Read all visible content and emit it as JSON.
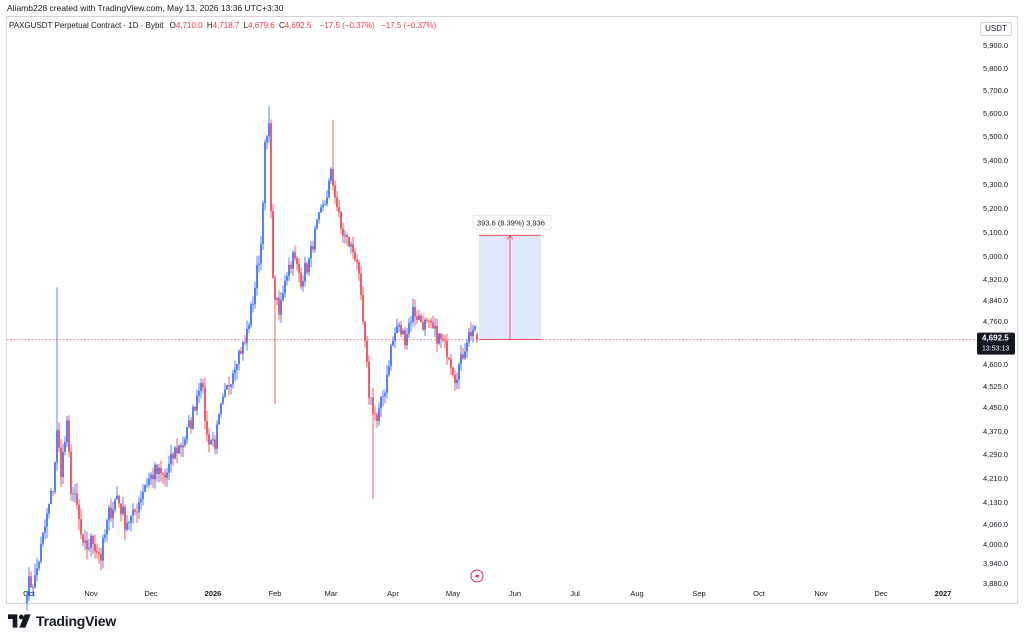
{
  "header": {
    "credit": "Aliamb228 created with TradingView.com, May 13, 2026 13:36 UTC+3:30"
  },
  "legend": {
    "symbol": "PAXGUSDT Perpetual Contract · 1D · Bybit",
    "open_key": "O",
    "open": "4,710.0",
    "high_key": "H",
    "high": "4,718.7",
    "low_key": "L",
    "low": "4,679.6",
    "close_key": "C",
    "close": "4,692.5",
    "change": "−17.5 (−0.37%)",
    "change2": "−17.5 (−0.37%)"
  },
  "currency": "USDT",
  "brand": {
    "name": "TradingView",
    "logo": "tradingview-logo-icon"
  },
  "colors": {
    "up": "#2962ff",
    "down": "#f23645",
    "measure_fill": "#dbe6fc",
    "measure_line": "#f23645"
  },
  "chart_data": {
    "type": "candlestick",
    "x_tick_labels": [
      "Oct",
      "Nov",
      "Dec",
      "2026",
      "Feb",
      "Mar",
      "Apr",
      "May",
      "Jun",
      "Jul",
      "Aug",
      "Sep",
      "Oct",
      "Nov",
      "Dec",
      "2027"
    ],
    "y_tick_labels": [
      "5,900.0",
      "5,800.0",
      "5,700.0",
      "5,600.0",
      "5,500.0",
      "5,400.0",
      "5,300.0",
      "5,200.0",
      "5,100.0",
      "5,000.0",
      "4,920.0",
      "4,840.0",
      "4,760.0",
      "4,680.0",
      "4,600.0",
      "4,525.0",
      "4,450.0",
      "4,370.0",
      "4,290.0",
      "4,210.0",
      "4,130.0",
      "4,060.0",
      "4,000.0",
      "3,940.0",
      "3,880.0"
    ],
    "price_scale": [
      [
        5900.0,
        45
      ],
      [
        5800.0,
        68
      ],
      [
        5700.0,
        90
      ],
      [
        5600.0,
        113
      ],
      [
        5500.0,
        136
      ],
      [
        5400.0,
        160
      ],
      [
        5300.0,
        184
      ],
      [
        5200.0,
        208
      ],
      [
        5100.0,
        232
      ],
      [
        5000.0,
        256
      ],
      [
        4920.0,
        279
      ],
      [
        4840.0,
        300
      ],
      [
        4760.0,
        321
      ],
      [
        4680.0,
        343
      ],
      [
        4600.0,
        364
      ],
      [
        4525.0,
        386
      ],
      [
        4450.0,
        407
      ],
      [
        4370.0,
        431
      ],
      [
        4290.0,
        454
      ],
      [
        4210.0,
        478
      ],
      [
        4130.0,
        502
      ],
      [
        4060.0,
        524
      ],
      [
        4000.0,
        544
      ],
      [
        3940.0,
        563
      ],
      [
        3880.0,
        583
      ]
    ],
    "last_price": "4,692.5",
    "countdown": "13:53:13",
    "measure_label": "393.6 (8.39%) 3,936",
    "measure": {
      "from_price": 4692.5,
      "to_price": 5086.1,
      "from_date": "2026-05-14",
      "to_date": "2026-06-14"
    },
    "candle_anchors": [
      [
        "2025-09-30",
        3870
      ],
      [
        "2025-10-04",
        3890
      ],
      [
        "2025-10-09",
        4050
      ],
      [
        "2025-10-13",
        4180
      ],
      [
        "2025-10-15",
        4360
      ],
      [
        "2025-10-17",
        4240
      ],
      [
        "2025-10-20",
        4380
      ],
      [
        "2025-10-22",
        4180
      ],
      [
        "2025-10-25",
        4110
      ],
      [
        "2025-10-28",
        3980
      ],
      [
        "2025-11-02",
        4010
      ],
      [
        "2025-11-06",
        3960
      ],
      [
        "2025-11-10",
        4090
      ],
      [
        "2025-11-14",
        4150
      ],
      [
        "2025-11-18",
        4070
      ],
      [
        "2025-11-22",
        4080
      ],
      [
        "2025-11-28",
        4190
      ],
      [
        "2025-12-03",
        4230
      ],
      [
        "2025-12-08",
        4210
      ],
      [
        "2025-12-13",
        4300
      ],
      [
        "2025-12-17",
        4330
      ],
      [
        "2025-12-21",
        4400
      ],
      [
        "2025-12-26",
        4560
      ],
      [
        "2025-12-29",
        4350
      ],
      [
        "2026-01-02",
        4330
      ],
      [
        "2026-01-05",
        4440
      ],
      [
        "2026-01-10",
        4560
      ],
      [
        "2026-01-13",
        4630
      ],
      [
        "2026-01-17",
        4680
      ],
      [
        "2026-01-21",
        4840
      ],
      [
        "2026-01-25",
        5050
      ],
      [
        "2026-01-27",
        5450
      ],
      [
        "2026-01-29",
        5530
      ],
      [
        "2026-01-31",
        4900
      ],
      [
        "2026-02-03",
        4780
      ],
      [
        "2026-02-06",
        4930
      ],
      [
        "2026-02-10",
        5000
      ],
      [
        "2026-02-14",
        4920
      ],
      [
        "2026-02-18",
        4980
      ],
      [
        "2026-02-22",
        5130
      ],
      [
        "2026-02-26",
        5220
      ],
      [
        "2026-03-01",
        5340
      ],
      [
        "2026-03-03",
        5260
      ],
      [
        "2026-03-06",
        5110
      ],
      [
        "2026-03-10",
        5050
      ],
      [
        "2026-03-14",
        4990
      ],
      [
        "2026-03-17",
        4750
      ],
      [
        "2026-03-20",
        4500
      ],
      [
        "2026-03-24",
        4400
      ],
      [
        "2026-03-28",
        4520
      ],
      [
        "2026-03-31",
        4660
      ],
      [
        "2026-04-03",
        4740
      ],
      [
        "2026-04-07",
        4700
      ],
      [
        "2026-04-11",
        4800
      ],
      [
        "2026-04-15",
        4760
      ],
      [
        "2026-04-20",
        4730
      ],
      [
        "2026-04-25",
        4690
      ],
      [
        "2026-04-29",
        4640
      ],
      [
        "2026-05-02",
        4560
      ],
      [
        "2026-05-05",
        4610
      ],
      [
        "2026-05-08",
        4700
      ],
      [
        "2026-05-11",
        4730
      ],
      [
        "2026-05-13",
        4692.5
      ]
    ],
    "spike_wicks": [
      [
        "2025-10-15",
        4888
      ],
      [
        "2026-01-29",
        5630
      ],
      [
        "2026-02-01",
        4460
      ],
      [
        "2026-03-02",
        5570
      ],
      [
        "2026-03-22",
        4140
      ]
    ],
    "ohlc_last": {
      "open": 4710.0,
      "high": 4718.7,
      "low": 4679.6,
      "close": 4692.5
    },
    "grid": false,
    "legend_position": "top-left"
  }
}
